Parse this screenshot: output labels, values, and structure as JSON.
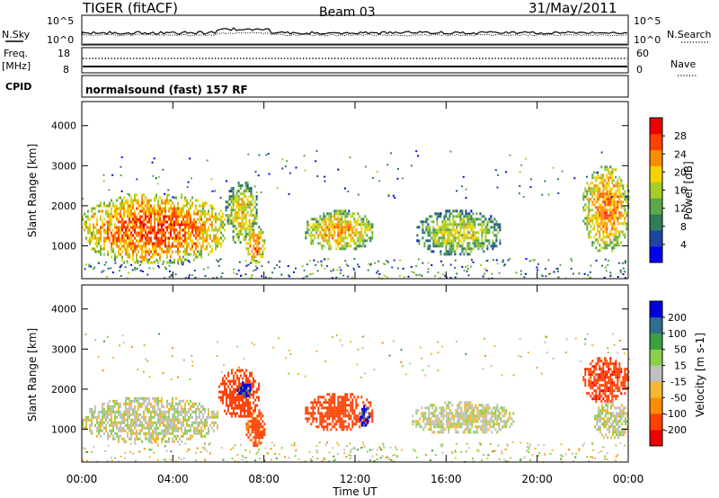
{
  "header": {
    "title": "TIGER (fitACF)",
    "beam": "Beam 03",
    "date": "31/May/2011"
  },
  "status_panels": {
    "nsky_label": "N.Sky",
    "nsearch_label": "N.Search",
    "noise_top_tick": "10^5",
    "noise_bottom_tick": "10^0",
    "freq_label": "Freq.",
    "freq_unit": "[MHz]",
    "freq_ticks": [
      "18",
      "8"
    ],
    "nave_label": "Nave",
    "nave_ticks": [
      "60",
      "0"
    ],
    "cpid_label": "CPID",
    "cpid_text": "normalsound (fast) 157 RF"
  },
  "colors": {
    "power_scale": [
      "#0000ee",
      "#1e46a0",
      "#2f7d5b",
      "#5aa84a",
      "#a8cc28",
      "#f5d200",
      "#ff8c00",
      "#ff4000",
      "#ee0000"
    ],
    "velocity_scale": [
      "#ee0000",
      "#ff4000",
      "#ff8c00",
      "#f2b830",
      "#c0c0c0",
      "#8bd04a",
      "#3aa040",
      "#2f6e8e",
      "#0000dd"
    ],
    "ground_scatter": "#c0c0c0"
  },
  "chart_data": [
    {
      "type": "heatmap",
      "panel": "power",
      "title": "",
      "ylabel": "Slant Range [km]",
      "ylim": [
        180,
        4600
      ],
      "yticks": [
        "1000",
        "2000",
        "3000",
        "4000"
      ],
      "x": [
        "00:00",
        "04:00",
        "08:00",
        "12:00",
        "16:00",
        "20:00",
        "00:00"
      ],
      "colorbar_label": "Power [dB]",
      "colorbar_ticks": [
        "4",
        "8",
        "12",
        "16",
        "20",
        "24",
        "28"
      ],
      "xlim_hours": [
        0,
        24
      ],
      "echo_regions": [
        {
          "t0": 0.0,
          "t1": 6.3,
          "r0": 600,
          "r1": 2300,
          "level": 26
        },
        {
          "t0": 6.3,
          "t1": 7.7,
          "r0": 1100,
          "r1": 2600,
          "level": 20
        },
        {
          "t0": 7.2,
          "t1": 8.0,
          "r0": 600,
          "r1": 1500,
          "level": 25
        },
        {
          "t0": 9.8,
          "t1": 12.8,
          "r0": 900,
          "r1": 1900,
          "level": 22
        },
        {
          "t0": 14.7,
          "t1": 18.4,
          "r0": 800,
          "r1": 1900,
          "level": 18
        },
        {
          "t0": 22.0,
          "t1": 24.0,
          "r0": 900,
          "r1": 3000,
          "level": 24
        }
      ]
    },
    {
      "type": "heatmap",
      "panel": "velocity",
      "title": "",
      "ylabel": "Slant Range [km]",
      "ylim": [
        180,
        4600
      ],
      "yticks": [
        "1000",
        "2000",
        "3000",
        "4000"
      ],
      "x": [
        "00:00",
        "04:00",
        "08:00",
        "12:00",
        "16:00",
        "20:00",
        "00:00"
      ],
      "xlabel": "Time UT",
      "colorbar_label": "Velocity [m s-1]",
      "colorbar_ticks": [
        "200",
        "100",
        "50",
        "15",
        "-15",
        "-50",
        "-100",
        "-200"
      ],
      "xlim_hours": [
        0,
        24
      ],
      "echo_regions": [
        {
          "t0": 0.0,
          "t1": 6.0,
          "r0": 700,
          "r1": 1800,
          "level": 0
        },
        {
          "t0": 6.0,
          "t1": 7.8,
          "r0": 1300,
          "r1": 2500,
          "level": -150
        },
        {
          "t0": 7.2,
          "t1": 8.0,
          "r0": 600,
          "r1": 1500,
          "level": -120
        },
        {
          "t0": 6.8,
          "t1": 7.4,
          "r0": 1800,
          "r1": 2200,
          "level": 210
        },
        {
          "t0": 9.8,
          "t1": 12.8,
          "r0": 1000,
          "r1": 1900,
          "level": -130
        },
        {
          "t0": 12.2,
          "t1": 12.6,
          "r0": 1100,
          "r1": 1600,
          "level": 210
        },
        {
          "t0": 14.5,
          "t1": 19.0,
          "r0": 900,
          "r1": 1700,
          "level": 0
        },
        {
          "t0": 22.0,
          "t1": 24.0,
          "r0": 1700,
          "r1": 2800,
          "level": -180
        },
        {
          "t0": 22.5,
          "t1": 24.0,
          "r0": 800,
          "r1": 1700,
          "level": 0
        }
      ]
    }
  ]
}
